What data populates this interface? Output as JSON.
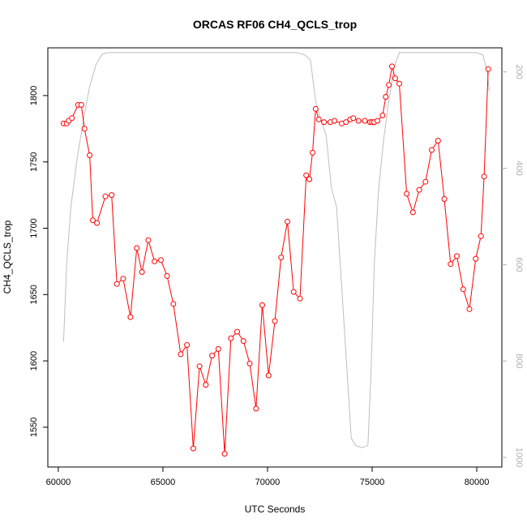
{
  "chart_data": {
    "type": "line",
    "title": "ORCAS RF06 CH4_QCLS_trop",
    "xlabel": "UTC Seconds",
    "ylabel": "CH4_QCLS_trop",
    "xlim": [
      59500,
      81200
    ],
    "ylim": [
      1520,
      1836
    ],
    "y2lim": [
      1020,
      150
    ],
    "x_ticks": [
      60000,
      65000,
      70000,
      75000,
      80000
    ],
    "y_ticks": [
      1550,
      1600,
      1650,
      1700,
      1750,
      1800
    ],
    "y2_ticks": [
      200,
      400,
      600,
      800,
      1000
    ],
    "grid": false,
    "legend": "none",
    "colors": {
      "primary": "#ff0000",
      "secondary": "#bebebe"
    },
    "series": [
      {
        "axis": "left",
        "style": "line-circles",
        "color": "#ff0000",
        "x": [
          60250,
          60400,
          60500,
          60650,
          60950,
          61100,
          61250,
          61500,
          61650,
          61850,
          62250,
          62550,
          62800,
          63100,
          63450,
          63750,
          64000,
          64300,
          64600,
          64900,
          65200,
          65500,
          65850,
          66150,
          66450,
          66750,
          67050,
          67350,
          67650,
          67950,
          68250,
          68550,
          68850,
          69150,
          69450,
          69750,
          70050,
          70350,
          70650,
          70950,
          71250,
          71550,
          71850,
          72000,
          72150,
          72300,
          72450,
          72700,
          73000,
          73200,
          73550,
          73750,
          73950,
          74100,
          74350,
          74650,
          74900,
          75000,
          75100,
          75250,
          75500,
          75650,
          75800,
          75950,
          76100,
          76300,
          76650,
          76950,
          77250,
          77550,
          77850,
          78150,
          78450,
          78750,
          79050,
          79350,
          79650,
          79950,
          80200,
          80350,
          80550
        ],
        "y": [
          1779,
          1779,
          1781,
          1783,
          1793,
          1793,
          1775,
          1755,
          1706,
          1704,
          1724,
          1725,
          1658,
          1662,
          1633,
          1685,
          1667,
          1691,
          1675,
          1676,
          1664,
          1643,
          1605,
          1612,
          1534,
          1596,
          1582,
          1604,
          1609,
          1530,
          1617,
          1622,
          1615,
          1598,
          1564,
          1642,
          1589,
          1630,
          1678,
          1705,
          1652,
          1647,
          1740,
          1737,
          1757,
          1790,
          1782,
          1780,
          1780,
          1781,
          1779,
          1780,
          1782,
          1783,
          1781,
          1781,
          1780,
          1780,
          1780,
          1781,
          1785,
          1799,
          1808,
          1822,
          1813,
          1809,
          1726,
          1712,
          1729,
          1735,
          1759,
          1766,
          1722,
          1673,
          1679,
          1654,
          1639,
          1677,
          1694,
          1739,
          1820
        ]
      },
      {
        "axis": "right",
        "style": "line",
        "color": "#bebebe",
        "x": [
          60250,
          60400,
          60600,
          60900,
          61200,
          61500,
          61800,
          62100,
          62400,
          62700,
          63000,
          64000,
          65000,
          66000,
          67000,
          68000,
          69000,
          70000,
          71000,
          71400,
          71800,
          72050,
          72300,
          72550,
          72800,
          73050,
          73300,
          73550,
          73800,
          74000,
          74200,
          74500,
          74800,
          74950,
          75100,
          75300,
          75550,
          75800,
          76050,
          76300,
          76500,
          77000,
          78000,
          79000,
          79500,
          80000,
          80300,
          80500,
          80600
        ],
        "y": [
          760,
          600,
          480,
          380,
          300,
          230,
          185,
          163,
          160,
          160,
          160,
          160,
          160,
          160,
          160,
          160,
          160,
          160,
          160,
          160,
          165,
          175,
          260,
          300,
          330,
          440,
          480,
          650,
          820,
          960,
          975,
          980,
          975,
          820,
          600,
          450,
          340,
          260,
          190,
          160,
          160,
          160,
          160,
          160,
          160,
          160,
          165,
          200,
          240
        ]
      }
    ]
  }
}
